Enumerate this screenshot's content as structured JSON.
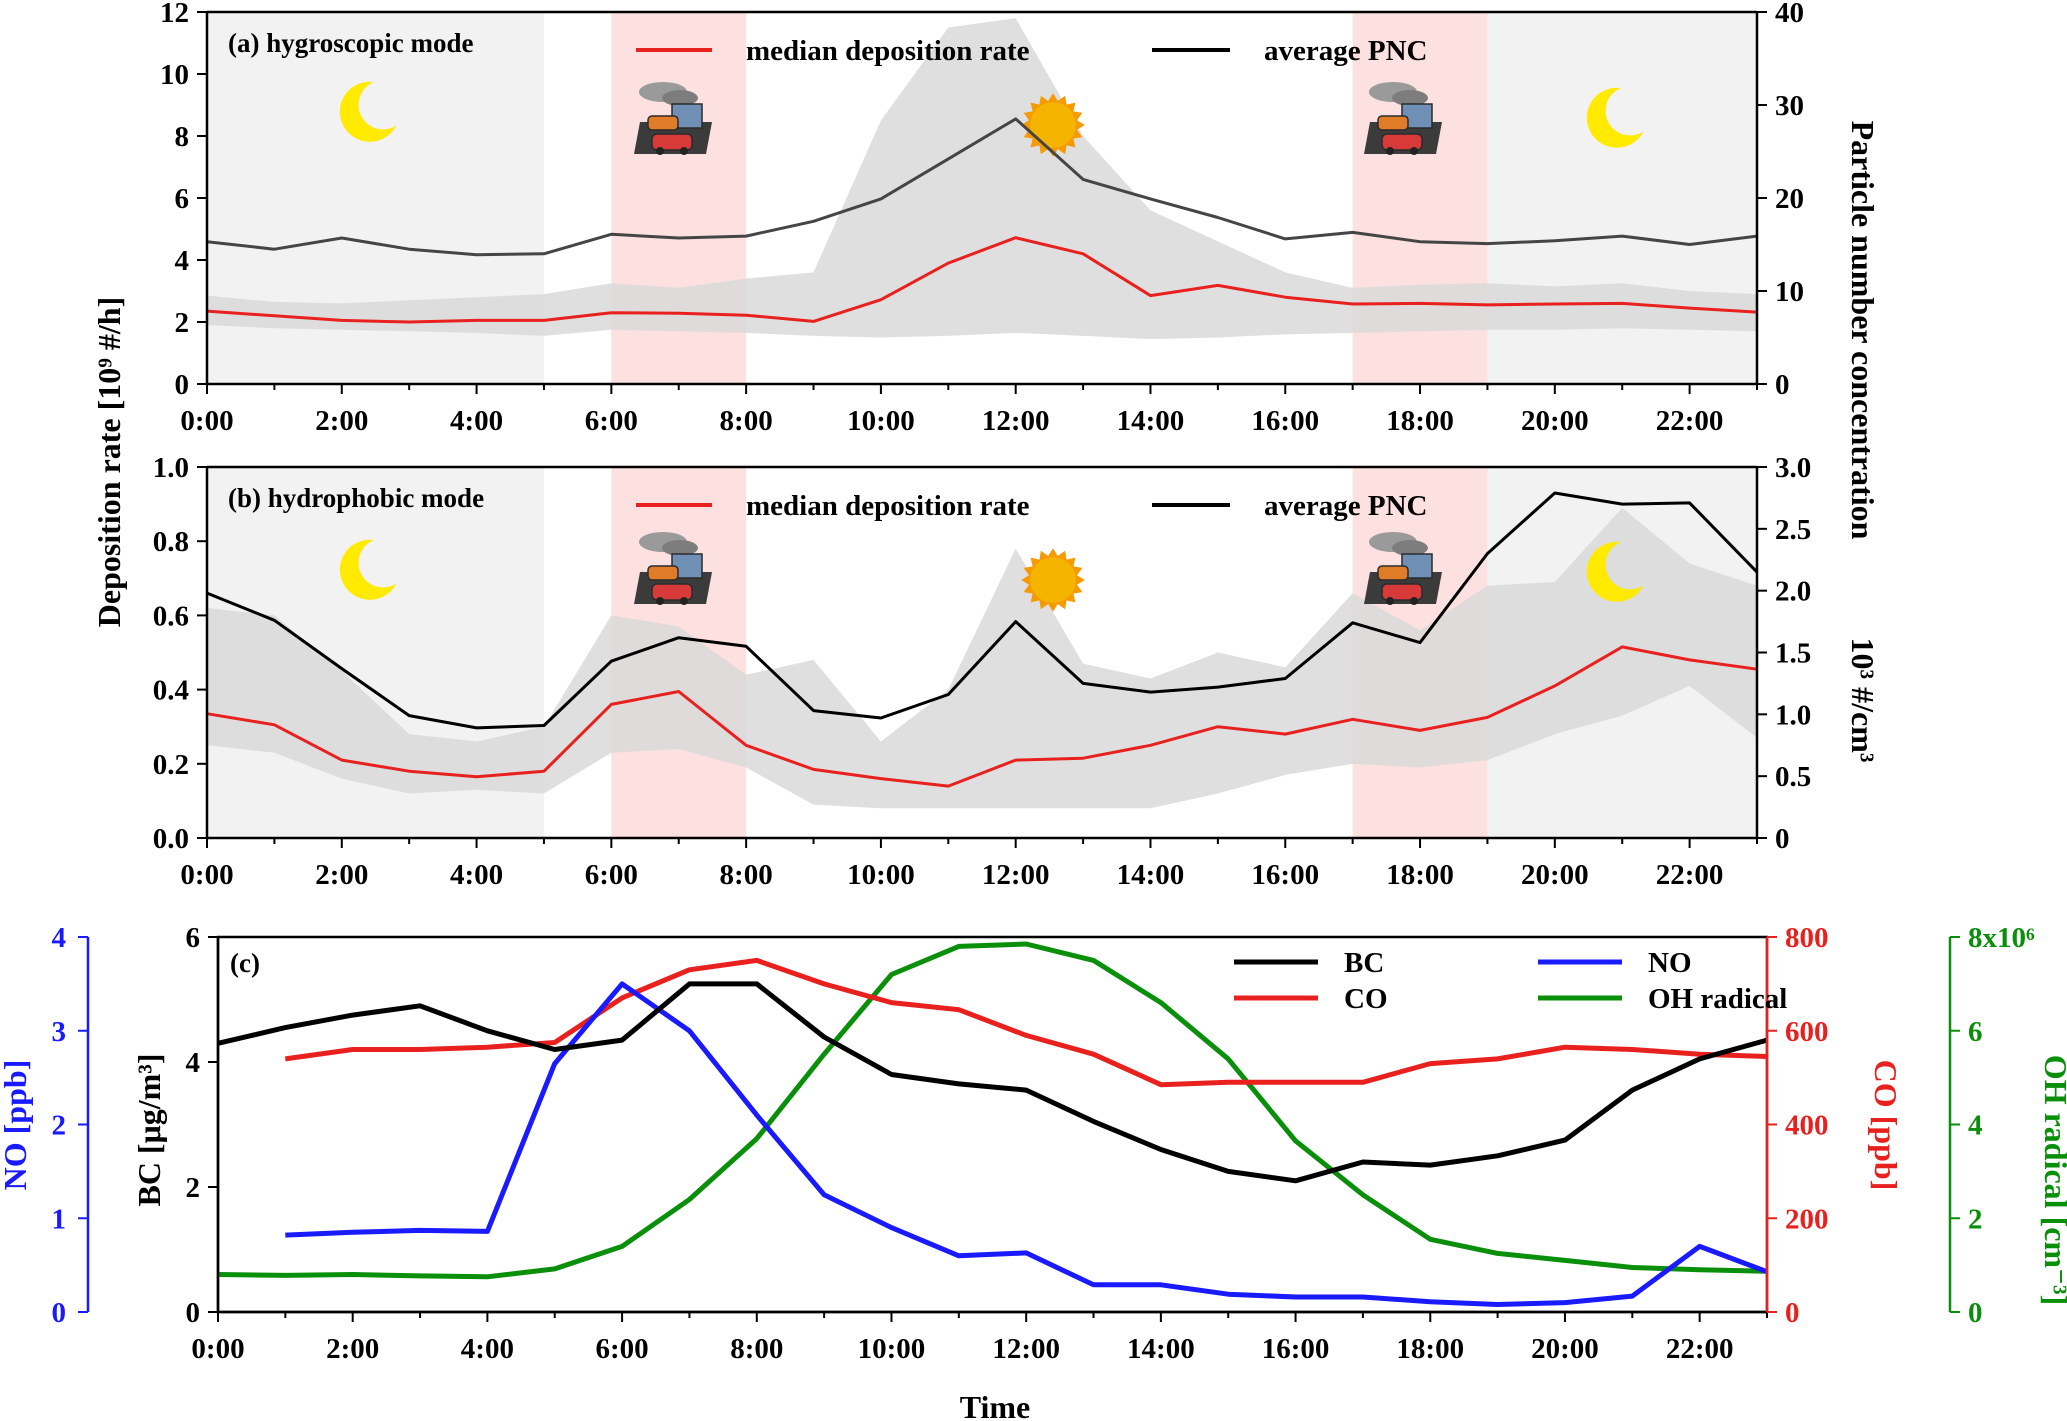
{
  "figure": {
    "shared_ylabel": "Deposition rate [10⁹ #/h]",
    "shared_y2label": "Particle number concentration"
  },
  "colors": {
    "red": "#e8211f",
    "red_band": "#f06060",
    "black": "#000000",
    "dark_gray": "#454545",
    "blue": "#1a1aff",
    "green": "#0a8f0a",
    "night_shade": "#f2f2f2",
    "rush_shade": "#fde0e0",
    "spread_gray": "#d9d9d9",
    "sun": "#f5b400",
    "moon": "#ffea00"
  },
  "icons": {
    "night": "moon-icon",
    "day": "sun-icon",
    "rush_hour": "traffic-icon"
  },
  "chart_data": [
    {
      "type": "line",
      "panel_label": "(a) hygroscopic mode",
      "x": [
        0,
        1,
        2,
        3,
        4,
        5,
        6,
        7,
        8,
        9,
        10,
        11,
        12,
        13,
        14,
        15,
        16,
        17,
        18,
        19,
        20,
        21,
        22,
        23
      ],
      "x_tick_labels": [
        "0:00",
        "2:00",
        "4:00",
        "6:00",
        "8:00",
        "10:00",
        "12:00",
        "14:00",
        "16:00",
        "18:00",
        "20:00",
        "22:00"
      ],
      "xlim": [
        0,
        23
      ],
      "ylim": [
        0,
        12
      ],
      "y_ticks": [
        "0",
        "2",
        "4",
        "6",
        "8",
        "10",
        "12"
      ],
      "y2lim": [
        0,
        40
      ],
      "y2_ticks": [
        "0",
        "10",
        "20",
        "30",
        "40"
      ],
      "legend": [
        "median  deposition rate",
        "average  PNC"
      ],
      "night_periods": [
        [
          0,
          5
        ],
        [
          19,
          23
        ]
      ],
      "rush_hours": [
        [
          6,
          8
        ],
        [
          17,
          19
        ]
      ],
      "series": [
        {
          "name": "median  deposition rate",
          "axis": "left",
          "values": [
            2.35,
            2.2,
            2.05,
            2.0,
            2.05,
            2.05,
            2.3,
            2.28,
            2.22,
            2.02,
            2.72,
            3.9,
            4.72,
            4.2,
            2.85,
            3.18,
            2.8,
            2.58,
            2.6,
            2.55,
            2.58,
            2.6,
            2.45,
            2.32
          ]
        },
        {
          "name": "average  PNC",
          "axis": "right",
          "values": [
            15.3,
            14.5,
            15.7,
            14.5,
            13.9,
            14.0,
            16.1,
            15.7,
            15.9,
            17.5,
            19.9,
            24.2,
            28.5,
            22.0,
            19.9,
            17.9,
            15.6,
            16.3,
            15.3,
            15.1,
            15.4,
            15.9,
            15.0,
            15.9
          ]
        }
      ],
      "spread_band": {
        "axis": "left",
        "upper": [
          2.85,
          2.65,
          2.6,
          2.7,
          2.8,
          2.9,
          3.25,
          3.1,
          3.4,
          3.6,
          8.5,
          11.5,
          11.8,
          8.0,
          5.6,
          4.6,
          3.6,
          3.1,
          3.2,
          3.25,
          3.15,
          3.25,
          3.0,
          2.9
        ],
        "lower": [
          1.9,
          1.8,
          1.75,
          1.7,
          1.65,
          1.55,
          1.75,
          1.7,
          1.65,
          1.55,
          1.5,
          1.55,
          1.65,
          1.55,
          1.45,
          1.5,
          1.6,
          1.65,
          1.7,
          1.75,
          1.75,
          1.8,
          1.75,
          1.7
        ]
      }
    },
    {
      "type": "line",
      "panel_label": "(b) hydrophobic mode",
      "x": [
        0,
        1,
        2,
        3,
        4,
        5,
        6,
        7,
        8,
        9,
        10,
        11,
        12,
        13,
        14,
        15,
        16,
        17,
        18,
        19,
        20,
        21,
        22,
        23
      ],
      "x_tick_labels": [
        "0:00",
        "2:00",
        "4:00",
        "6:00",
        "8:00",
        "10:00",
        "12:00",
        "14:00",
        "16:00",
        "18:00",
        "20:00",
        "22:00"
      ],
      "xlim": [
        0,
        23
      ],
      "ylim": [
        0,
        1.0
      ],
      "y_ticks": [
        "0.0",
        "0.2",
        "0.4",
        "0.6",
        "0.8",
        "1.0"
      ],
      "y2label": "10³ #/cm³",
      "y2lim": [
        0,
        3.0
      ],
      "y2_ticks": [
        "0",
        "0.5",
        "1.0",
        "1.5",
        "2.0",
        "2.5",
        "3.0"
      ],
      "legend": [
        "median  deposition rate",
        "average  PNC"
      ],
      "night_periods": [
        [
          0,
          5
        ],
        [
          19,
          23
        ]
      ],
      "rush_hours": [
        [
          6,
          8
        ],
        [
          17,
          19
        ]
      ],
      "series": [
        {
          "name": "median  deposition rate",
          "axis": "left",
          "values": [
            0.335,
            0.305,
            0.21,
            0.18,
            0.165,
            0.18,
            0.36,
            0.395,
            0.25,
            0.185,
            0.16,
            0.14,
            0.21,
            0.215,
            0.25,
            0.3,
            0.28,
            0.32,
            0.29,
            0.325,
            0.41,
            0.515,
            0.48,
            0.455
          ]
        },
        {
          "name": "average  PNC",
          "axis": "right",
          "values": [
            1.98,
            1.76,
            1.37,
            0.99,
            0.89,
            0.91,
            1.43,
            1.62,
            1.55,
            1.03,
            0.97,
            1.16,
            1.75,
            1.25,
            1.18,
            1.22,
            1.29,
            1.74,
            1.58,
            2.3,
            2.79,
            2.7,
            2.71,
            2.15
          ]
        }
      ],
      "spread_band": {
        "axis": "left",
        "upper": [
          0.62,
          0.6,
          0.45,
          0.28,
          0.26,
          0.3,
          0.6,
          0.57,
          0.44,
          0.48,
          0.26,
          0.4,
          0.78,
          0.47,
          0.43,
          0.5,
          0.46,
          0.66,
          0.56,
          0.68,
          0.69,
          0.89,
          0.74,
          0.68
        ],
        "lower": [
          0.25,
          0.23,
          0.16,
          0.12,
          0.13,
          0.12,
          0.23,
          0.24,
          0.19,
          0.09,
          0.08,
          0.08,
          0.08,
          0.08,
          0.08,
          0.12,
          0.17,
          0.2,
          0.19,
          0.21,
          0.28,
          0.33,
          0.41,
          0.27
        ]
      }
    },
    {
      "type": "line",
      "panel_label": "(c)",
      "xlabel": "Time",
      "x": [
        0,
        1,
        2,
        3,
        4,
        5,
        6,
        7,
        8,
        9,
        10,
        11,
        12,
        13,
        14,
        15,
        16,
        17,
        18,
        19,
        20,
        21,
        22,
        23
      ],
      "x_tick_labels": [
        "0:00",
        "2:00",
        "4:00",
        "6:00",
        "8:00",
        "10:00",
        "12:00",
        "14:00",
        "16:00",
        "18:00",
        "20:00",
        "22:00"
      ],
      "xlim": [
        0,
        23
      ],
      "axes": {
        "bc": {
          "label": "BC [μg/m³]",
          "lim": [
            0,
            6
          ],
          "ticks": [
            "0",
            "2",
            "4",
            "6"
          ]
        },
        "no": {
          "label": "NO [ppb]",
          "lim": [
            0,
            4
          ],
          "ticks": [
            "0",
            "1",
            "2",
            "3",
            "4"
          ]
        },
        "co": {
          "label": "CO [ppb]",
          "lim": [
            0,
            800
          ],
          "ticks": [
            "0",
            "200",
            "400",
            "600",
            "800"
          ]
        },
        "oh": {
          "label": "OH radical [cm⁻³]",
          "lim": [
            0,
            8
          ],
          "ticks": [
            "0",
            "2",
            "4",
            "6",
            "8x10⁶"
          ]
        }
      },
      "legend": [
        "BC",
        "NO",
        "CO",
        "OH radical"
      ],
      "series": [
        {
          "name": "BC",
          "axis": "bc",
          "x": [
            0,
            1,
            2,
            3,
            4,
            5,
            6,
            7,
            8,
            9,
            10,
            11,
            12,
            13,
            14,
            15,
            16,
            17,
            18,
            19,
            20,
            21,
            22,
            23
          ],
          "values": [
            4.3,
            4.55,
            4.75,
            4.9,
            4.5,
            4.2,
            4.35,
            5.25,
            5.25,
            4.4,
            3.8,
            3.65,
            3.55,
            3.05,
            2.6,
            2.25,
            2.1,
            2.4,
            2.35,
            2.5,
            2.75,
            3.55,
            4.05,
            4.35
          ]
        },
        {
          "name": "NO",
          "axis": "no",
          "x": [
            1,
            2,
            3,
            4,
            5,
            6,
            7,
            8,
            9,
            10,
            11,
            12,
            13,
            14,
            15,
            16,
            17,
            18,
            19,
            20,
            21,
            22,
            23
          ],
          "values": [
            0.82,
            0.85,
            0.87,
            0.86,
            2.65,
            3.5,
            3.0,
            2.1,
            1.25,
            0.9,
            0.6,
            0.63,
            0.29,
            0.29,
            0.19,
            0.16,
            0.16,
            0.11,
            0.08,
            0.1,
            0.17,
            0.7,
            0.43
          ]
        },
        {
          "name": "CO",
          "axis": "co",
          "x": [
            1,
            2,
            3,
            4,
            5,
            6,
            7,
            8,
            9,
            10,
            11,
            12,
            13,
            14,
            15,
            16,
            17,
            18,
            19,
            20,
            21,
            22,
            23
          ],
          "values": [
            540,
            560,
            560,
            565,
            575,
            670,
            730,
            750,
            700,
            660,
            645,
            590,
            550,
            485,
            490,
            490,
            490,
            530,
            540,
            565,
            560,
            550,
            545
          ]
        },
        {
          "name": "OH radical",
          "axis": "oh",
          "x": [
            0,
            1,
            2,
            3,
            4,
            5,
            6,
            7,
            8,
            9,
            10,
            11,
            12,
            13,
            14,
            15,
            16,
            17,
            18,
            19,
            20,
            21,
            22,
            23
          ],
          "values": [
            0.8,
            0.78,
            0.8,
            0.77,
            0.75,
            0.92,
            1.4,
            2.4,
            3.7,
            5.5,
            7.2,
            7.8,
            7.85,
            7.5,
            6.6,
            5.4,
            3.65,
            2.5,
            1.55,
            1.25,
            1.1,
            0.95,
            0.9,
            0.87
          ]
        }
      ]
    }
  ]
}
